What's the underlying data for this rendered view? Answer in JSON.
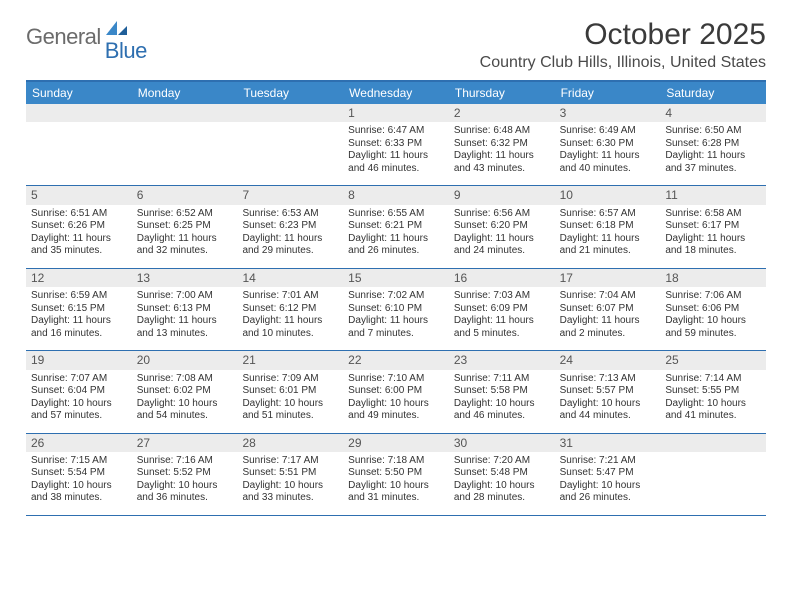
{
  "logo": {
    "general": "General",
    "blue": "Blue"
  },
  "title": "October 2025",
  "location": "Country Club Hills, Illinois, United States",
  "colors": {
    "header_bg": "#3a87c8",
    "rule": "#2e6fb0",
    "daynum_bg": "#ececec",
    "text": "#333333",
    "logo_gray": "#6b6b6b",
    "logo_blue": "#2e6fb0"
  },
  "dow": [
    "Sunday",
    "Monday",
    "Tuesday",
    "Wednesday",
    "Thursday",
    "Friday",
    "Saturday"
  ],
  "weeks": [
    [
      {
        "n": "",
        "sunrise": "",
        "sunset": "",
        "daylight1": "",
        "daylight2": ""
      },
      {
        "n": "",
        "sunrise": "",
        "sunset": "",
        "daylight1": "",
        "daylight2": ""
      },
      {
        "n": "",
        "sunrise": "",
        "sunset": "",
        "daylight1": "",
        "daylight2": ""
      },
      {
        "n": "1",
        "sunrise": "Sunrise: 6:47 AM",
        "sunset": "Sunset: 6:33 PM",
        "daylight1": "Daylight: 11 hours",
        "daylight2": "and 46 minutes."
      },
      {
        "n": "2",
        "sunrise": "Sunrise: 6:48 AM",
        "sunset": "Sunset: 6:32 PM",
        "daylight1": "Daylight: 11 hours",
        "daylight2": "and 43 minutes."
      },
      {
        "n": "3",
        "sunrise": "Sunrise: 6:49 AM",
        "sunset": "Sunset: 6:30 PM",
        "daylight1": "Daylight: 11 hours",
        "daylight2": "and 40 minutes."
      },
      {
        "n": "4",
        "sunrise": "Sunrise: 6:50 AM",
        "sunset": "Sunset: 6:28 PM",
        "daylight1": "Daylight: 11 hours",
        "daylight2": "and 37 minutes."
      }
    ],
    [
      {
        "n": "5",
        "sunrise": "Sunrise: 6:51 AM",
        "sunset": "Sunset: 6:26 PM",
        "daylight1": "Daylight: 11 hours",
        "daylight2": "and 35 minutes."
      },
      {
        "n": "6",
        "sunrise": "Sunrise: 6:52 AM",
        "sunset": "Sunset: 6:25 PM",
        "daylight1": "Daylight: 11 hours",
        "daylight2": "and 32 minutes."
      },
      {
        "n": "7",
        "sunrise": "Sunrise: 6:53 AM",
        "sunset": "Sunset: 6:23 PM",
        "daylight1": "Daylight: 11 hours",
        "daylight2": "and 29 minutes."
      },
      {
        "n": "8",
        "sunrise": "Sunrise: 6:55 AM",
        "sunset": "Sunset: 6:21 PM",
        "daylight1": "Daylight: 11 hours",
        "daylight2": "and 26 minutes."
      },
      {
        "n": "9",
        "sunrise": "Sunrise: 6:56 AM",
        "sunset": "Sunset: 6:20 PM",
        "daylight1": "Daylight: 11 hours",
        "daylight2": "and 24 minutes."
      },
      {
        "n": "10",
        "sunrise": "Sunrise: 6:57 AM",
        "sunset": "Sunset: 6:18 PM",
        "daylight1": "Daylight: 11 hours",
        "daylight2": "and 21 minutes."
      },
      {
        "n": "11",
        "sunrise": "Sunrise: 6:58 AM",
        "sunset": "Sunset: 6:17 PM",
        "daylight1": "Daylight: 11 hours",
        "daylight2": "and 18 minutes."
      }
    ],
    [
      {
        "n": "12",
        "sunrise": "Sunrise: 6:59 AM",
        "sunset": "Sunset: 6:15 PM",
        "daylight1": "Daylight: 11 hours",
        "daylight2": "and 16 minutes."
      },
      {
        "n": "13",
        "sunrise": "Sunrise: 7:00 AM",
        "sunset": "Sunset: 6:13 PM",
        "daylight1": "Daylight: 11 hours",
        "daylight2": "and 13 minutes."
      },
      {
        "n": "14",
        "sunrise": "Sunrise: 7:01 AM",
        "sunset": "Sunset: 6:12 PM",
        "daylight1": "Daylight: 11 hours",
        "daylight2": "and 10 minutes."
      },
      {
        "n": "15",
        "sunrise": "Sunrise: 7:02 AM",
        "sunset": "Sunset: 6:10 PM",
        "daylight1": "Daylight: 11 hours",
        "daylight2": "and 7 minutes."
      },
      {
        "n": "16",
        "sunrise": "Sunrise: 7:03 AM",
        "sunset": "Sunset: 6:09 PM",
        "daylight1": "Daylight: 11 hours",
        "daylight2": "and 5 minutes."
      },
      {
        "n": "17",
        "sunrise": "Sunrise: 7:04 AM",
        "sunset": "Sunset: 6:07 PM",
        "daylight1": "Daylight: 11 hours",
        "daylight2": "and 2 minutes."
      },
      {
        "n": "18",
        "sunrise": "Sunrise: 7:06 AM",
        "sunset": "Sunset: 6:06 PM",
        "daylight1": "Daylight: 10 hours",
        "daylight2": "and 59 minutes."
      }
    ],
    [
      {
        "n": "19",
        "sunrise": "Sunrise: 7:07 AM",
        "sunset": "Sunset: 6:04 PM",
        "daylight1": "Daylight: 10 hours",
        "daylight2": "and 57 minutes."
      },
      {
        "n": "20",
        "sunrise": "Sunrise: 7:08 AM",
        "sunset": "Sunset: 6:02 PM",
        "daylight1": "Daylight: 10 hours",
        "daylight2": "and 54 minutes."
      },
      {
        "n": "21",
        "sunrise": "Sunrise: 7:09 AM",
        "sunset": "Sunset: 6:01 PM",
        "daylight1": "Daylight: 10 hours",
        "daylight2": "and 51 minutes."
      },
      {
        "n": "22",
        "sunrise": "Sunrise: 7:10 AM",
        "sunset": "Sunset: 6:00 PM",
        "daylight1": "Daylight: 10 hours",
        "daylight2": "and 49 minutes."
      },
      {
        "n": "23",
        "sunrise": "Sunrise: 7:11 AM",
        "sunset": "Sunset: 5:58 PM",
        "daylight1": "Daylight: 10 hours",
        "daylight2": "and 46 minutes."
      },
      {
        "n": "24",
        "sunrise": "Sunrise: 7:13 AM",
        "sunset": "Sunset: 5:57 PM",
        "daylight1": "Daylight: 10 hours",
        "daylight2": "and 44 minutes."
      },
      {
        "n": "25",
        "sunrise": "Sunrise: 7:14 AM",
        "sunset": "Sunset: 5:55 PM",
        "daylight1": "Daylight: 10 hours",
        "daylight2": "and 41 minutes."
      }
    ],
    [
      {
        "n": "26",
        "sunrise": "Sunrise: 7:15 AM",
        "sunset": "Sunset: 5:54 PM",
        "daylight1": "Daylight: 10 hours",
        "daylight2": "and 38 minutes."
      },
      {
        "n": "27",
        "sunrise": "Sunrise: 7:16 AM",
        "sunset": "Sunset: 5:52 PM",
        "daylight1": "Daylight: 10 hours",
        "daylight2": "and 36 minutes."
      },
      {
        "n": "28",
        "sunrise": "Sunrise: 7:17 AM",
        "sunset": "Sunset: 5:51 PM",
        "daylight1": "Daylight: 10 hours",
        "daylight2": "and 33 minutes."
      },
      {
        "n": "29",
        "sunrise": "Sunrise: 7:18 AM",
        "sunset": "Sunset: 5:50 PM",
        "daylight1": "Daylight: 10 hours",
        "daylight2": "and 31 minutes."
      },
      {
        "n": "30",
        "sunrise": "Sunrise: 7:20 AM",
        "sunset": "Sunset: 5:48 PM",
        "daylight1": "Daylight: 10 hours",
        "daylight2": "and 28 minutes."
      },
      {
        "n": "31",
        "sunrise": "Sunrise: 7:21 AM",
        "sunset": "Sunset: 5:47 PM",
        "daylight1": "Daylight: 10 hours",
        "daylight2": "and 26 minutes."
      },
      {
        "n": "",
        "sunrise": "",
        "sunset": "",
        "daylight1": "",
        "daylight2": ""
      }
    ]
  ]
}
